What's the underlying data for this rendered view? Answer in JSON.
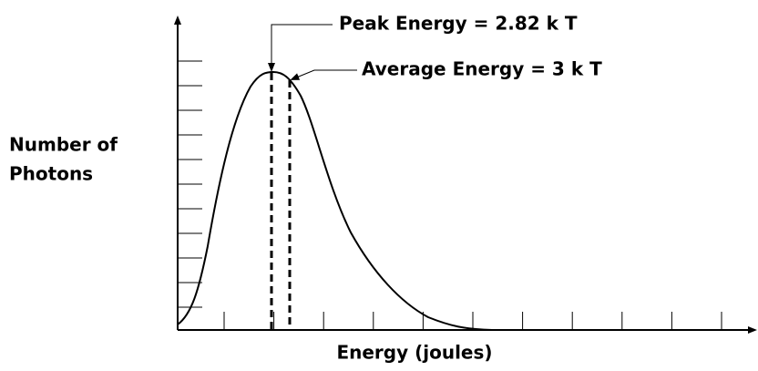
{
  "annotations": {
    "peak": "Peak Energy = 2.82 k T",
    "average": "Average Energy = 3 k T"
  },
  "axes": {
    "y_label": [
      "Number of",
      "Photons"
    ],
    "x_label": "Energy (joules)"
  }
}
